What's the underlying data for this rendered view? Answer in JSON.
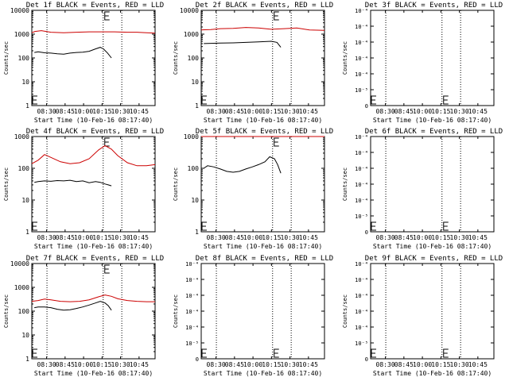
{
  "chart_data": [
    {
      "type": "line",
      "title": "Det 1f BLACK = Events, RED = LLD",
      "xlabel": "Start Time (10-Feb-16 08:17:40)",
      "ylabel": "Counts/sec",
      "ylim": [
        1,
        10000
      ],
      "yscale": "log",
      "y_ticks": [
        "1",
        "10",
        "100",
        "1000",
        "10000"
      ],
      "series": [
        {
          "name": "LLD",
          "color": "#cc0000",
          "t": [
            0,
            10,
            30,
            60,
            100,
            140,
            180,
            220,
            260,
            300,
            330,
            360,
            387
          ],
          "values": [
            1150,
            1300,
            1400,
            1200,
            1150,
            1200,
            1250,
            1250,
            1250,
            1200,
            1200,
            1150,
            1100
          ]
        },
        {
          "name": "Events",
          "color": "#000000",
          "t": [
            8,
            20,
            40,
            60,
            80,
            100,
            120,
            140,
            160,
            180,
            200,
            215,
            225,
            238,
            250
          ],
          "values": [
            170,
            180,
            165,
            160,
            150,
            145,
            160,
            170,
            175,
            190,
            240,
            280,
            240,
            160,
            100
          ]
        }
      ]
    },
    {
      "type": "line",
      "title": "Det 2f BLACK = Events, RED = LLD",
      "xlabel": "Start Time (10-Feb-16 08:17:40)",
      "ylabel": "Counts/sec",
      "ylim": [
        1,
        10000
      ],
      "yscale": "log",
      "y_ticks": [
        "1",
        "10",
        "100",
        "1000",
        "10000"
      ],
      "series": [
        {
          "name": "LLD",
          "color": "#cc0000",
          "t": [
            0,
            30,
            60,
            100,
            140,
            180,
            220,
            260,
            300,
            340,
            387
          ],
          "values": [
            1500,
            1550,
            1700,
            1750,
            1900,
            1800,
            1600,
            1700,
            1800,
            1500,
            1450
          ]
        },
        {
          "name": "Events",
          "color": "#000000",
          "t": [
            8,
            30,
            60,
            100,
            140,
            180,
            220,
            238,
            250
          ],
          "values": [
            400,
            410,
            420,
            430,
            450,
            470,
            500,
            450,
            280
          ]
        }
      ]
    },
    {
      "type": "line",
      "title": "Det 3f BLACK = Events, RED = LLD",
      "xlabel": "Start Time (10-Feb-16 08:17:40)",
      "ylabel": "Counts/sec",
      "ylim": [
        0,
        0.0001
      ],
      "yscale": "linear",
      "y_ticks": [
        "0",
        "10⁻⁵",
        "10⁻⁴",
        "10⁻⁴",
        "10⁻⁴",
        "10⁻⁴",
        "10⁻⁴"
      ],
      "series": []
    },
    {
      "type": "line",
      "title": "Det 4f BLACK = Events, RED = LLD",
      "xlabel": "Start Time (10-Feb-16 08:17:40)",
      "ylabel": "Counts/sec",
      "ylim": [
        1,
        1000
      ],
      "yscale": "log",
      "y_ticks": [
        "1",
        "10",
        "100",
        "1000"
      ],
      "series": [
        {
          "name": "LLD",
          "color": "#cc0000",
          "t": [
            0,
            20,
            40,
            60,
            90,
            120,
            150,
            180,
            210,
            230,
            250,
            270,
            300,
            330,
            360,
            387
          ],
          "values": [
            140,
            180,
            270,
            220,
            160,
            140,
            150,
            200,
            380,
            520,
            400,
            250,
            150,
            120,
            120,
            130
          ]
        },
        {
          "name": "Events",
          "color": "#000000",
          "t": [
            8,
            20,
            40,
            60,
            80,
            100,
            120,
            140,
            160,
            180,
            200,
            215,
            230,
            240,
            250
          ],
          "values": [
            36,
            38,
            40,
            39,
            41,
            40,
            42,
            38,
            40,
            35,
            38,
            36,
            32,
            30,
            28
          ]
        }
      ]
    },
    {
      "type": "line",
      "title": "Det 5f BLACK = Events, RED = LLD",
      "xlabel": "Start Time (10-Feb-16 08:17:40)",
      "ylabel": "Counts/sec",
      "ylim": [
        1,
        1000
      ],
      "yscale": "log",
      "y_ticks": [
        "1",
        "10",
        "100",
        "1000"
      ],
      "series": [
        {
          "name": "LLD",
          "color": "#cc0000",
          "t": [
            0,
            60,
            120,
            180,
            240,
            300,
            387
          ],
          "values": [
            1000,
            1000,
            1000,
            1000,
            1000,
            1000,
            1000
          ]
        },
        {
          "name": "Events",
          "color": "#000000",
          "t": [
            8,
            20,
            40,
            60,
            80,
            100,
            120,
            140,
            160,
            180,
            200,
            215,
            230,
            240,
            250
          ],
          "values": [
            100,
            120,
            110,
            95,
            80,
            75,
            80,
            95,
            110,
            130,
            160,
            230,
            200,
            130,
            70
          ]
        }
      ]
    },
    {
      "type": "line",
      "title": "Det 6f BLACK = Events, RED = LLD",
      "xlabel": "Start Time (10-Feb-16 08:17:40)",
      "ylabel": "Counts/sec",
      "ylim": [
        0,
        0.0001
      ],
      "yscale": "linear",
      "y_ticks": [
        "0",
        "10⁻⁵",
        "10⁻⁴",
        "10⁻⁴",
        "10⁻⁴",
        "10⁻⁴",
        "10⁻⁴"
      ],
      "series": []
    },
    {
      "type": "line",
      "title": "Det 7f BLACK = Events, RED = LLD",
      "xlabel": "Start Time (10-Feb-16 08:17:40)",
      "ylabel": "Counts/sec",
      "ylim": [
        1,
        10000
      ],
      "yscale": "log",
      "y_ticks": [
        "1",
        "10",
        "100",
        "1000",
        "10000"
      ],
      "series": [
        {
          "name": "LLD",
          "color": "#cc0000",
          "t": [
            0,
            20,
            40,
            60,
            90,
            120,
            150,
            180,
            210,
            230,
            250,
            270,
            300,
            330,
            360,
            387
          ],
          "values": [
            260,
            280,
            320,
            300,
            260,
            250,
            260,
            300,
            400,
            480,
            420,
            330,
            280,
            260,
            250,
            250
          ]
        },
        {
          "name": "Events",
          "color": "#000000",
          "t": [
            8,
            20,
            40,
            60,
            80,
            100,
            120,
            140,
            160,
            180,
            200,
            215,
            230,
            240,
            250
          ],
          "values": [
            140,
            150,
            150,
            140,
            120,
            110,
            115,
            130,
            150,
            180,
            220,
            260,
            220,
            170,
            110
          ]
        }
      ]
    },
    {
      "type": "line",
      "title": "Det 8f BLACK = Events, RED = LLD",
      "xlabel": "Start Time (10-Feb-16 08:17:40)",
      "ylabel": "Counts/sec",
      "ylim": [
        0,
        0.0001
      ],
      "yscale": "linear",
      "y_ticks": [
        "0",
        "10⁻⁵",
        "10⁻⁴",
        "10⁻⁴",
        "10⁻⁴",
        "10⁻⁴",
        "10⁻⁴"
      ],
      "series": []
    },
    {
      "type": "line",
      "title": "Det 9f BLACK = Events, RED = LLD",
      "xlabel": "Start Time (10-Feb-16 08:17:40)",
      "ylabel": "Counts/sec",
      "ylim": [
        0,
        0.0001
      ],
      "yscale": "linear",
      "y_ticks": [
        "0",
        "10⁻⁵",
        "10⁻⁴",
        "10⁻⁴",
        "10⁻⁴",
        "10⁻⁴",
        "10⁻⁴"
      ],
      "series": []
    }
  ],
  "x_axis": {
    "tick_labels": [
      "08:30",
      "08:45",
      "10:00",
      "10:15",
      "10:30",
      "10:45"
    ],
    "tick_t": [
      12,
      27,
      42,
      57,
      72,
      87
    ],
    "vlines_t": [
      12.3,
      57.9,
      73.0
    ],
    "t_max": 387
  }
}
